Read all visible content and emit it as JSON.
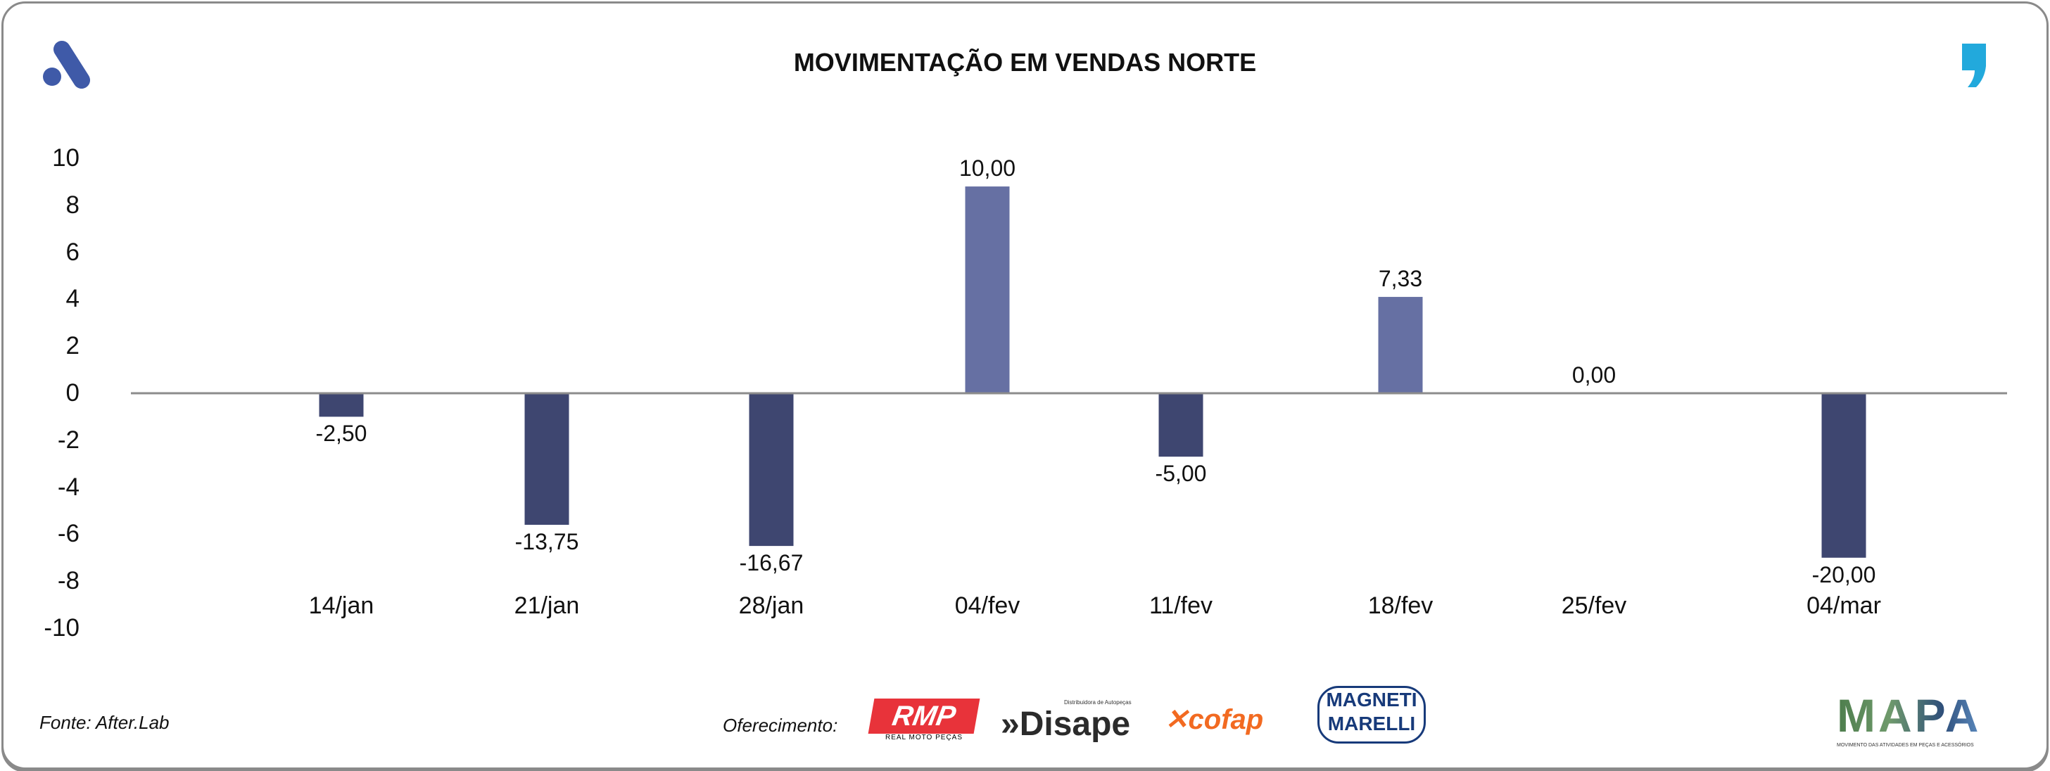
{
  "header": {
    "title": "MOVIMENTAÇÃO EM VENDAS NORTE",
    "left_logo": "afterlab-logo-icon",
    "right_logo": "quote-comma-logo-icon"
  },
  "chart_data": {
    "type": "bar",
    "title": "MOVIMENTAÇÃO EM VENDAS NORTE",
    "categories": [
      "14/jan",
      "21/jan",
      "28/jan",
      "04/fev",
      "11/fev",
      "18/fev",
      "25/fev",
      "04/mar"
    ],
    "values": [
      -2.5,
      -13.75,
      -16.67,
      10.0,
      -5.0,
      7.33,
      0.0,
      -20.0
    ],
    "data_labels": [
      "-2,50",
      "-13,75",
      "-16,67",
      "10,00",
      "-5,00",
      "7,33",
      "0,00",
      "-20,00"
    ],
    "plotted_bar_levels": [
      -1.0,
      -5.6,
      -6.5,
      8.8,
      -2.7,
      4.1,
      0,
      -7.0
    ],
    "ylim": [
      -10,
      10
    ],
    "yticks": [
      "10",
      "8",
      "6",
      "4",
      "2",
      "0",
      "-2",
      "-4",
      "-6",
      "-8",
      "-10"
    ],
    "grid": false,
    "legend": "none",
    "colors": {
      "negative": "#3e4670",
      "positive": "#6670a3",
      "axis": "#8c8c8c"
    }
  },
  "footer": {
    "source": "Fonte: After.Lab",
    "sponsor_label": "Oferecimento:",
    "sponsors": [
      "RMP",
      "Disape",
      "cofap",
      "MAGNETI MARELLI"
    ],
    "rmp_sub": "REAL MOTO PEÇAS",
    "disape_sub": "Distribuidora de Autopeças",
    "mapa": "MAPA",
    "mapa_sub": "MOVIMENTO DAS ATIVIDADES EM PEÇAS E ACESSÓRIOS"
  }
}
